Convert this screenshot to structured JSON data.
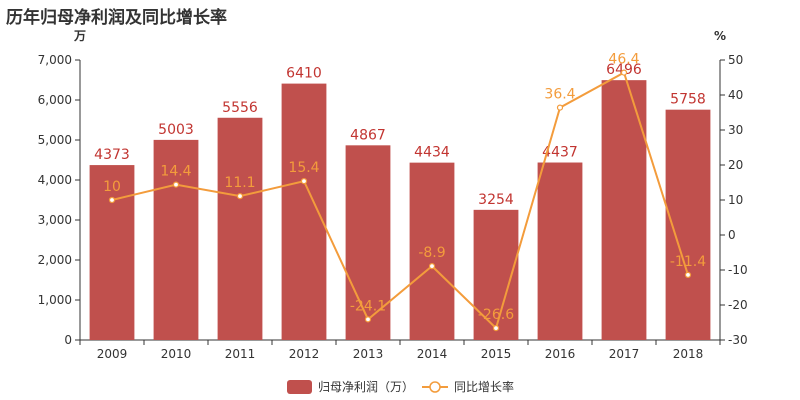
{
  "chart_data": {
    "type": "bar",
    "title": "历年归母净利润及同比增长率",
    "categories": [
      "2009",
      "2010",
      "2011",
      "2012",
      "2013",
      "2014",
      "2015",
      "2016",
      "2017",
      "2018"
    ],
    "series": [
      {
        "name": "归母净利润（万）",
        "type": "bar",
        "axis": "left",
        "values": [
          4373,
          5003,
          5556,
          6410,
          4867,
          4434,
          3254,
          4437,
          6496,
          5758
        ],
        "labels": [
          "4373",
          "5003",
          "5556",
          "6410",
          "4867",
          "4434",
          "3254",
          "4437",
          "6496",
          "5758"
        ]
      },
      {
        "name": "同比增长率",
        "type": "line",
        "axis": "right",
        "values": [
          10,
          14.4,
          11.1,
          15.4,
          -24.1,
          -8.9,
          -26.6,
          36.4,
          46.4,
          -11.4
        ],
        "labels": [
          "10",
          "14.4",
          "11.1",
          "15.4",
          "-24.1",
          "-8.9",
          "-26.6",
          "36.4",
          "46.4",
          "-11.4"
        ]
      }
    ],
    "y_left": {
      "unit": "万",
      "ylim": [
        0,
        7000
      ],
      "ticks": [
        "0",
        "1,000",
        "2,000",
        "3,000",
        "4,000",
        "5,000",
        "6,000",
        "7,000"
      ]
    },
    "y_right": {
      "unit": "%",
      "ylim": [
        -30,
        50
      ],
      "ticks": [
        "-30",
        "-20",
        "-10",
        "0",
        "10",
        "20",
        "30",
        "40",
        "50"
      ]
    },
    "grid": false,
    "legend_position": "bottom",
    "colors": {
      "bar": "#c23531",
      "bar_fill": "#c0504d",
      "line": "#f39c3c",
      "axis": "#333333"
    }
  }
}
